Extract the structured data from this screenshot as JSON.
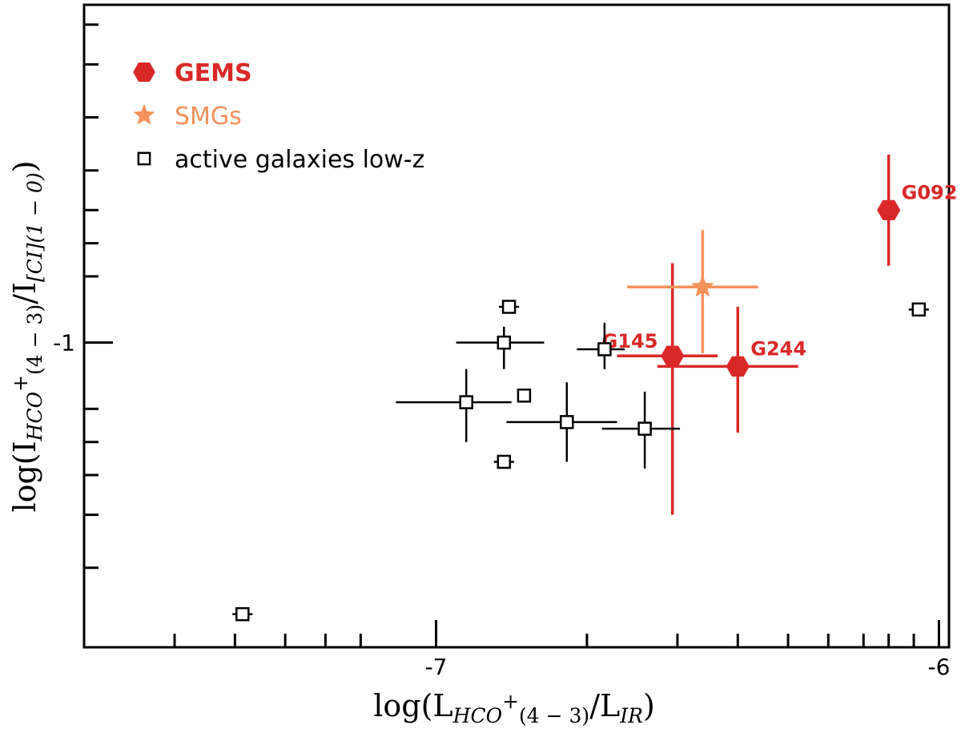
{
  "chart_data": {
    "type": "scatter",
    "title": "",
    "xlabel": {
      "pre": "log(L",
      "sub1": "HCO",
      "sup": "+",
      "sub2": "(4 − 3)",
      "mid": "/L",
      "sub3": "IR",
      "post": ")"
    },
    "ylabel": {
      "pre": "log(I",
      "sub1": "HCO",
      "sup": "+",
      "sub2": "(4 − 3)",
      "mid": "/I",
      "sub3": "[CI](1 − 0)",
      "post": ")"
    },
    "xlim": [
      -7.7,
      -5.98
    ],
    "ylim": [
      -1.23,
      -0.745
    ],
    "x_ticks": [
      {
        "value": -7,
        "label": "-7"
      },
      {
        "value": -6,
        "label": "-6"
      }
    ],
    "y_ticks": [
      {
        "value": -1,
        "label": "-1"
      }
    ],
    "x_minor_ticks": [
      -7.52,
      -7.4,
      -7.3,
      -7.22,
      -7.15,
      -6.7,
      -6.52,
      -6.4,
      -6.3,
      -6.22,
      -6.15,
      -6.1,
      -6.05
    ],
    "y_minor_ticks": [
      -1.17,
      -1.13,
      -1.1,
      -1.075,
      -1.05,
      -0.95,
      -0.925,
      -0.9,
      -0.87,
      -0.83,
      -0.79,
      -0.76
    ],
    "legend": {
      "position": "top-left",
      "entries": [
        {
          "label": "GEMS",
          "marker": "hexagon",
          "color": "#d92828",
          "bold": true
        },
        {
          "label": "SMGs",
          "marker": "star",
          "color": "#f5915a",
          "bold": false
        },
        {
          "label": "active galaxies low-z",
          "marker": "open-square",
          "color": "#000000",
          "bold": false
        }
      ]
    },
    "series": [
      {
        "name": "GEMS",
        "color": "#d92828",
        "marker": "hexagon",
        "points": [
          {
            "label": "G092",
            "x": -6.1,
            "y": -0.9,
            "xerr": 0,
            "yerr_low": 0.042,
            "yerr_high": 0.042
          },
          {
            "label": "G145",
            "x": -6.53,
            "y": -1.01,
            "xerr_low": 0.11,
            "xerr_high": 0.09,
            "yerr_low": 0.12,
            "yerr_high": 0.07
          },
          {
            "label": "G244",
            "x": -6.4,
            "y": -1.018,
            "xerr_low": 0.16,
            "xerr_high": 0.12,
            "yerr_low": 0.05,
            "yerr_high": 0.045
          }
        ]
      },
      {
        "name": "SMGs",
        "color": "#f5915a",
        "marker": "star",
        "points": [
          {
            "x": -6.47,
            "y": -0.958,
            "xerr_low": 0.15,
            "xerr_high": 0.11,
            "yerr_low": 0.05,
            "yerr_high": 0.043
          }
        ]
      },
      {
        "name": "active galaxies low-z",
        "color": "#000000",
        "marker": "open-square",
        "points": [
          {
            "x": -7.385,
            "y": -1.205,
            "xerr_low": 0.02,
            "xerr_high": 0.02,
            "yerr_low": 0.005,
            "yerr_high": 0.005
          },
          {
            "x": -6.94,
            "y": -1.045,
            "xerr_low": 0.14,
            "xerr_high": 0.09,
            "yerr_low": 0.03,
            "yerr_high": 0.025
          },
          {
            "x": -6.865,
            "y": -1.0,
            "xerr_low": 0.095,
            "xerr_high": 0.08,
            "yerr_low": 0.02,
            "yerr_high": 0.012
          },
          {
            "x": -6.855,
            "y": -0.973,
            "xerr_low": 0.02,
            "xerr_high": 0.02,
            "yerr_low": 0.005,
            "yerr_high": 0.005
          },
          {
            "x": -6.825,
            "y": -1.04,
            "xerr_low": 0.01,
            "xerr_high": 0.01,
            "yerr_low": 0.005,
            "yerr_high": 0.005
          },
          {
            "x": -6.865,
            "y": -1.09,
            "xerr_low": 0.02,
            "xerr_high": 0.02,
            "yerr_low": 0.005,
            "yerr_high": 0.005
          },
          {
            "x": -6.74,
            "y": -1.06,
            "xerr_low": 0.12,
            "xerr_high": 0.1,
            "yerr_low": 0.03,
            "yerr_high": 0.03
          },
          {
            "x": -6.665,
            "y": -1.005,
            "xerr_low": 0.055,
            "xerr_high": 0.04,
            "yerr_low": 0.015,
            "yerr_high": 0.02
          },
          {
            "x": -6.585,
            "y": -1.065,
            "xerr_low": 0.085,
            "xerr_high": 0.07,
            "yerr_low": 0.03,
            "yerr_high": 0.028
          },
          {
            "x": -6.04,
            "y": -0.975,
            "xerr_low": 0.02,
            "xerr_high": 0.02,
            "yerr_low": 0.005,
            "yerr_high": 0.005
          }
        ]
      }
    ]
  }
}
